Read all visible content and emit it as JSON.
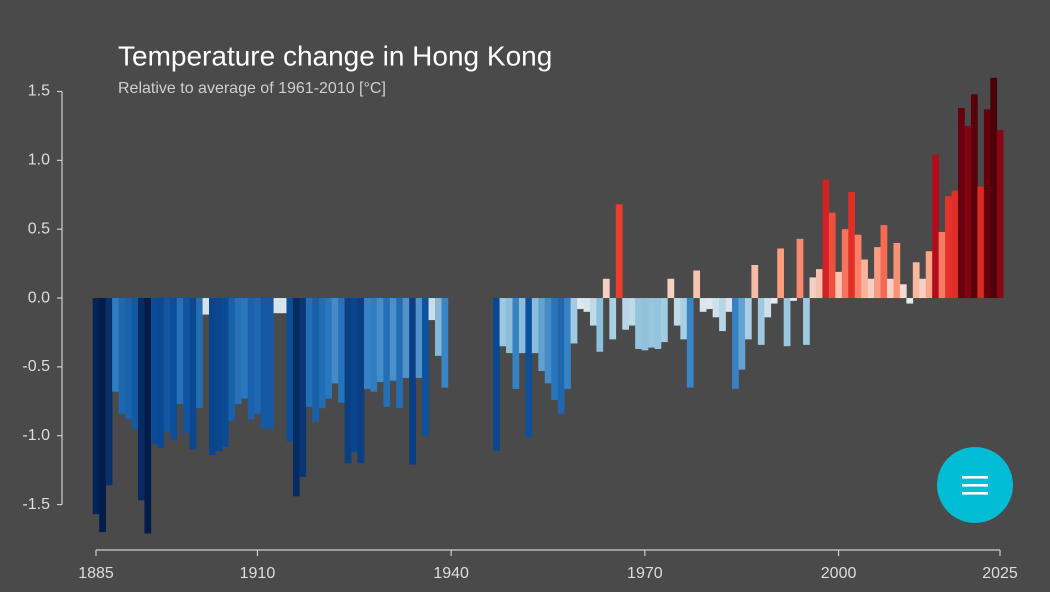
{
  "chart_data": {
    "type": "bar",
    "title": "Temperature change in Hong Kong",
    "subtitle": "Relative to average of 1961-2010  [°C]",
    "x": [
      1885,
      1886,
      1887,
      1888,
      1889,
      1890,
      1891,
      1892,
      1893,
      1894,
      1895,
      1896,
      1897,
      1898,
      1899,
      1900,
      1901,
      1902,
      1903,
      1904,
      1905,
      1906,
      1907,
      1908,
      1909,
      1910,
      1911,
      1912,
      1913,
      1914,
      1915,
      1916,
      1917,
      1918,
      1919,
      1920,
      1921,
      1922,
      1923,
      1924,
      1925,
      1926,
      1927,
      1928,
      1929,
      1930,
      1931,
      1932,
      1933,
      1934,
      1935,
      1936,
      1937,
      1938,
      1939,
      1940,
      1941,
      1942,
      1943,
      1944,
      1945,
      1946,
      1947,
      1948,
      1949,
      1950,
      1951,
      1952,
      1953,
      1954,
      1955,
      1956,
      1957,
      1958,
      1959,
      1960,
      1961,
      1962,
      1963,
      1964,
      1965,
      1966,
      1967,
      1968,
      1969,
      1970,
      1971,
      1972,
      1973,
      1974,
      1975,
      1976,
      1977,
      1978,
      1979,
      1980,
      1981,
      1982,
      1983,
      1984,
      1985,
      1986,
      1987,
      1988,
      1989,
      1990,
      1991,
      1992,
      1993,
      1994,
      1995,
      1996,
      1997,
      1998,
      1999,
      2000,
      2001,
      2002,
      2003,
      2004,
      2005,
      2006,
      2007,
      2008,
      2009,
      2010,
      2011,
      2012,
      2013,
      2014,
      2015,
      2016,
      2017,
      2018,
      2019,
      2020,
      2021,
      2022,
      2023,
      2024,
      2025
    ],
    "values": [
      -1.57,
      -1.7,
      -1.36,
      -0.68,
      -0.84,
      -0.88,
      -0.95,
      -1.47,
      -1.71,
      -1.06,
      -1.09,
      -0.97,
      -1.03,
      -0.77,
      -0.98,
      -1.1,
      -0.8,
      -0.12,
      -1.14,
      -1.11,
      -1.08,
      -0.89,
      -0.77,
      -0.73,
      -0.88,
      -0.84,
      -0.95,
      -0.95,
      -0.11,
      -0.11,
      -1.04,
      -1.44,
      -1.3,
      -0.79,
      -0.9,
      -0.8,
      -0.73,
      -0.62,
      -0.76,
      -1.2,
      -1.12,
      -1.2,
      -0.66,
      -0.68,
      -0.61,
      -0.79,
      -0.6,
      -0.8,
      -0.58,
      -1.21,
      -0.58,
      -1.0,
      -0.16,
      -0.42,
      -0.65,
      null,
      null,
      null,
      null,
      null,
      null,
      null,
      -1.11,
      -0.35,
      -0.4,
      -0.66,
      -0.4,
      -1.01,
      -0.4,
      -0.53,
      -0.62,
      -0.74,
      -0.84,
      -0.66,
      -0.33,
      -0.08,
      -0.1,
      -0.2,
      -0.39,
      0.14,
      -0.3,
      0.68,
      -0.23,
      -0.2,
      -0.37,
      -0.38,
      -0.36,
      -0.37,
      -0.32,
      0.14,
      -0.2,
      -0.3,
      -0.65,
      0.2,
      -0.1,
      -0.08,
      -0.14,
      -0.24,
      -0.1,
      -0.66,
      -0.52,
      -0.3,
      0.24,
      -0.34,
      -0.14,
      -0.04,
      0.36,
      -0.35,
      -0.02,
      0.43,
      -0.34,
      0.15,
      0.21,
      0.86,
      0.62,
      0.19,
      0.5,
      0.77,
      0.46,
      0.28,
      0.14,
      0.37,
      0.53,
      0.14,
      0.4,
      0.1,
      -0.04,
      0.26,
      0.14,
      0.34,
      1.04,
      0.48,
      0.74,
      0.78,
      1.38,
      1.25,
      1.48,
      0.81,
      1.37,
      1.6,
      1.22
    ],
    "colormap": [
      "#021c4a",
      "#08306b",
      "#0b4f9c",
      "#2f7dc2",
      "#9ecae1",
      "#f0f0f0",
      "#fca487",
      "#ef3b2c",
      "#b30d1a",
      "#67000d",
      "#3d0008"
    ],
    "xlim": [
      1885,
      2025
    ],
    "xticks": [
      1885,
      1910,
      1940,
      1970,
      2000,
      2025
    ],
    "ylim": [
      -1.83,
      1.62
    ],
    "yticks": [
      -1.5,
      {
        "value": -1,
        "label": "-1.0"
      },
      -0.5,
      {
        "value": 0,
        "label": "0.0"
      },
      0.5,
      {
        "value": 1,
        "label": "1.0"
      },
      1.5
    ]
  }
}
